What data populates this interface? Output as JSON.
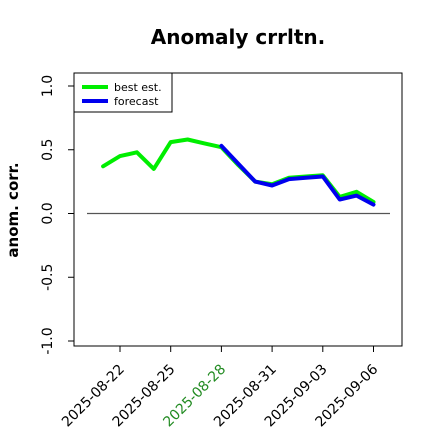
{
  "chart_data": {
    "type": "line",
    "title": "Anomaly crrltn.",
    "xlabel": "",
    "ylabel": "anom. corr.",
    "ylim": [
      -1.0,
      1.0
    ],
    "yticks": [
      -1.0,
      -0.5,
      0.0,
      0.5,
      1.0
    ],
    "ytick_labels": [
      "-1.0",
      "-0.5",
      "0.0",
      "0.5",
      "1.0"
    ],
    "x_ticks": [
      "2025-08-22",
      "2025-08-25",
      "2025-08-28",
      "2025-08-31",
      "2025-09-03",
      "2025-09-06"
    ],
    "highlighted_x_tick": "2025-08-28",
    "highlight_color": "#228b22",
    "reference_line": {
      "y": 0.0,
      "color": "#555555"
    },
    "legend": {
      "placement": "top-left",
      "entries": [
        "best est.",
        "forecast"
      ]
    },
    "series": [
      {
        "name": "best est.",
        "color": "#00ee00",
        "x": [
          "2025-08-21",
          "2025-08-22",
          "2025-08-23",
          "2025-08-24",
          "2025-08-25",
          "2025-08-26",
          "2025-08-27",
          "2025-08-28",
          "2025-08-29",
          "2025-08-30",
          "2025-08-31",
          "2025-09-01",
          "2025-09-02",
          "2025-09-03",
          "2025-09-04",
          "2025-09-05",
          "2025-09-06"
        ],
        "values": [
          0.37,
          0.45,
          0.48,
          0.35,
          0.56,
          0.58,
          0.55,
          0.52,
          0.38,
          0.25,
          0.23,
          0.28,
          0.29,
          0.3,
          0.13,
          0.17,
          0.09
        ]
      },
      {
        "name": "forecast",
        "color": "#0000ee",
        "x": [
          "2025-08-28",
          "2025-08-29",
          "2025-08-30",
          "2025-08-31",
          "2025-09-01",
          "2025-09-02",
          "2025-09-03",
          "2025-09-04",
          "2025-09-05",
          "2025-09-06"
        ],
        "values": [
          0.53,
          0.39,
          0.25,
          0.22,
          0.27,
          0.28,
          0.29,
          0.11,
          0.14,
          0.07
        ]
      }
    ]
  }
}
